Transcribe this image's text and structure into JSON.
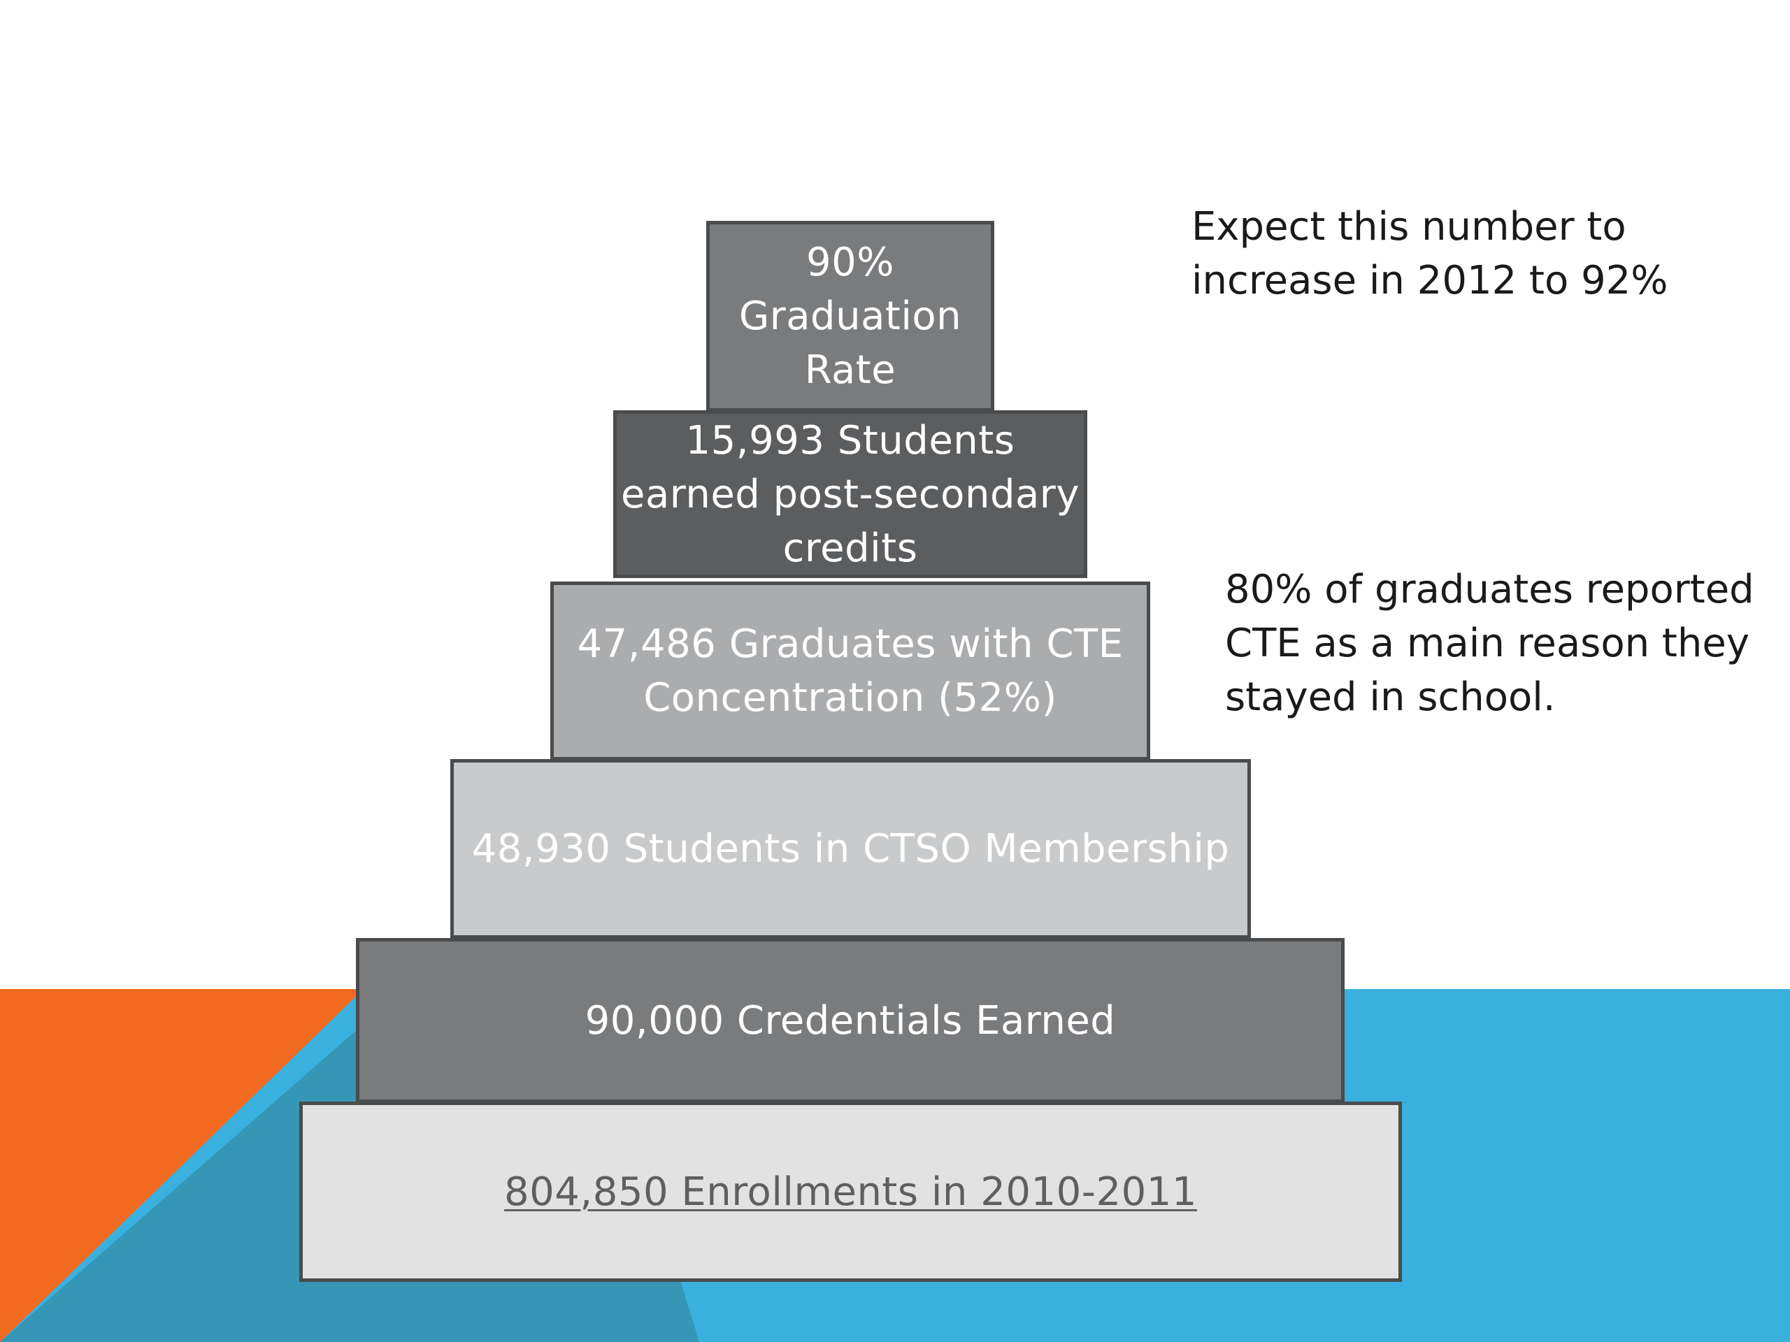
{
  "background": {
    "shapes": [
      "orange-triangle",
      "blue-band",
      "teal-triangle"
    ],
    "colors": {
      "orange": "#f26b21",
      "blue": "#3ab0de",
      "teal": "#3596b6"
    }
  },
  "pyramid": {
    "tiers": [
      {
        "label": "90%\nGraduation\nRate",
        "color": "#7a7b7d"
      },
      {
        "label": "15,993 Students\nearned post-secondary\ncredits",
        "color": "#5c5d5f"
      },
      {
        "label": "47,486 Graduates with CTE\nConcentration (52%)",
        "color": "#abacae"
      },
      {
        "label": "48,930 Students in CTSO Membership",
        "color": "#c9cacb"
      },
      {
        "label": "90,000 Credentials Earned",
        "color": "#7a7b7d"
      },
      {
        "label": "804,850 Enrollments in 2010-2011",
        "color": "#e2e2e3"
      }
    ]
  },
  "notes": [
    {
      "text": "Expect this number to\nincrease in 2012 to 92%"
    },
    {
      "text": "80% of graduates reported\nCTE as a main reason they\nstayed in school."
    }
  ]
}
